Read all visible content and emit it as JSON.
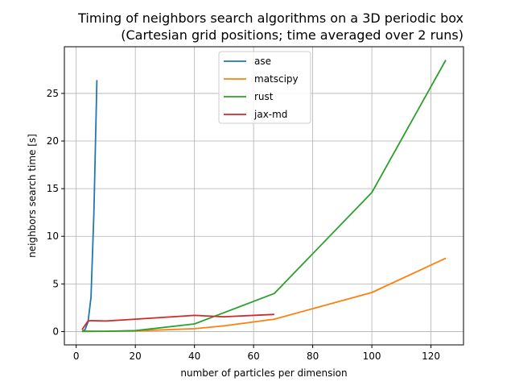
{
  "chart_data": {
    "type": "line",
    "title": "Timing of neighbors search algorithms on a 3D periodic box",
    "subtitle": "(Cartesian grid positions; time averaged over 2 runs)",
    "xlabel": "number of particles per dimension",
    "ylabel": "neighbors search time [s]",
    "xlim": [
      -4,
      131
    ],
    "ylim": [
      -1.4,
      29.9
    ],
    "xticks": [
      0,
      20,
      40,
      60,
      80,
      100,
      120
    ],
    "yticks": [
      0,
      5,
      10,
      15,
      20,
      25
    ],
    "grid": true,
    "legend_position": "top-center",
    "series": [
      {
        "name": "ase",
        "color": "#1f77b4",
        "x": [
          2,
          3,
          4,
          5,
          6,
          7
        ],
        "y": [
          0.02,
          0.2,
          1.0,
          3.6,
          12.5,
          26.4
        ]
      },
      {
        "name": "matscipy",
        "color": "#ff7f0e",
        "x": [
          2,
          5,
          10,
          20,
          40,
          50,
          67,
          100,
          125
        ],
        "y": [
          0.02,
          0.02,
          0.03,
          0.06,
          0.3,
          0.6,
          1.3,
          4.1,
          7.7
        ]
      },
      {
        "name": "rust",
        "color": "#2ca02c",
        "x": [
          2,
          5,
          10,
          20,
          40,
          67,
          100,
          125
        ],
        "y": [
          0.02,
          0.02,
          0.03,
          0.1,
          0.8,
          4.0,
          14.6,
          28.5
        ]
      },
      {
        "name": "jax-md",
        "color": "#d62728",
        "x": [
          2,
          4,
          5,
          10,
          20,
          40,
          50,
          67
        ],
        "y": [
          0.2,
          1.1,
          1.15,
          1.1,
          1.3,
          1.7,
          1.55,
          1.8
        ]
      }
    ]
  }
}
